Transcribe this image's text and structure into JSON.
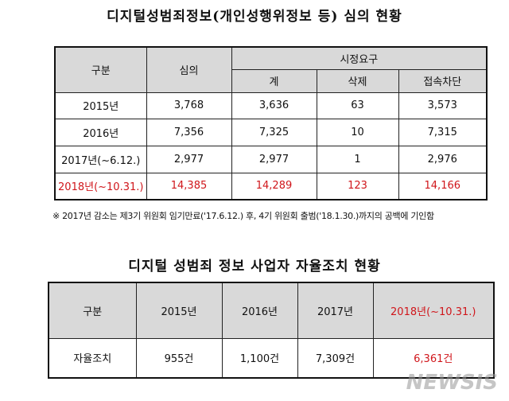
{
  "title1": "디지털성범죄정보(개인성행위정보 등) 심의 현황",
  "table1": {
    "header": {
      "col0": "구분",
      "col1": "심의",
      "group": "시정요구",
      "sub": [
        "계",
        "삭제",
        "접속차단"
      ]
    },
    "rows": [
      [
        "2015년",
        "3,768",
        "3,636",
        "63",
        "3,573"
      ],
      [
        "2016년",
        "7,356",
        "7,325",
        "10",
        "7,315"
      ],
      [
        "2017년(~6.12.)",
        "2,977",
        "2,977",
        "1",
        "2,976"
      ],
      [
        "2018년(~10.31.)",
        "14,385",
        "14,289",
        "123",
        "14,166"
      ]
    ]
  },
  "note": "※  2017년 감소는 제3기 위원회 임기만료('17.6.12.) 후, 4기 위원회 출범('18.1.30.)까지의 공백에 기인함",
  "title2": "디지털 성범죄 정보 사업자 자율조치 현황",
  "table2": {
    "header": [
      "구분",
      "2015년",
      "2016년",
      "2017년",
      "2018년(~10.31.)"
    ],
    "rows": [
      [
        "자율조치",
        "955건",
        "1,100건",
        "7,309건",
        "6,361건"
      ]
    ]
  },
  "watermark": "NEWSIS"
}
